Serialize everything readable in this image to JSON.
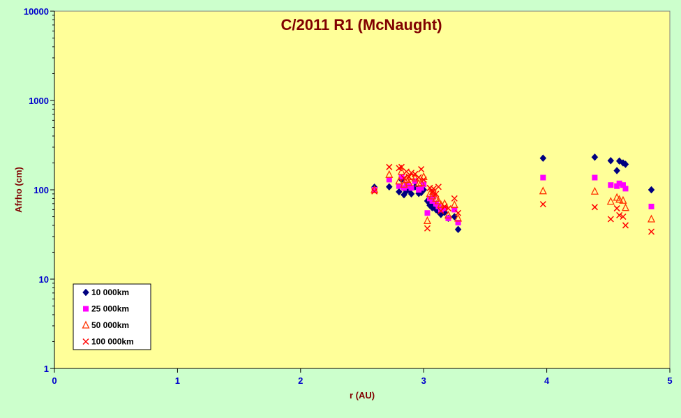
{
  "chart_data": {
    "type": "scatter",
    "title": "C/2011 R1 (McNaught)",
    "xlabel": "r (AU)",
    "ylabel": "Afrho (cm)",
    "xlim": [
      0,
      5
    ],
    "ylim": [
      1,
      10000
    ],
    "yscale": "log",
    "x_ticks": [
      0,
      1,
      2,
      3,
      4,
      5
    ],
    "y_ticks": [
      1,
      10,
      100,
      1000,
      10000
    ],
    "grid": false,
    "legend_position": "bottom-left",
    "colors": {
      "background": "#ccffcc",
      "plot_area": "#ffff99",
      "axis": "#000000",
      "tick_label": "#0000cc",
      "title": "#800000"
    },
    "series": [
      {
        "name": "10 000km",
        "marker": "diamond",
        "color": "#000080",
        "points": [
          [
            2.6,
            107
          ],
          [
            2.72,
            108
          ],
          [
            2.8,
            95
          ],
          [
            2.82,
            130
          ],
          [
            2.84,
            88
          ],
          [
            2.86,
            97
          ],
          [
            2.88,
            100
          ],
          [
            2.9,
            90
          ],
          [
            2.93,
            108
          ],
          [
            2.96,
            91
          ],
          [
            2.98,
            93
          ],
          [
            3.0,
            100
          ],
          [
            3.03,
            75
          ],
          [
            3.05,
            67
          ],
          [
            3.07,
            63
          ],
          [
            3.08,
            70
          ],
          [
            3.1,
            60
          ],
          [
            3.12,
            57
          ],
          [
            3.14,
            53
          ],
          [
            3.17,
            56
          ],
          [
            3.2,
            48
          ],
          [
            3.25,
            50
          ],
          [
            3.28,
            36
          ],
          [
            3.97,
            226
          ],
          [
            4.39,
            232
          ],
          [
            4.52,
            212
          ],
          [
            4.57,
            164
          ],
          [
            4.59,
            210
          ],
          [
            4.62,
            200
          ],
          [
            4.64,
            193
          ],
          [
            4.85,
            100
          ]
        ]
      },
      {
        "name": "25 000km",
        "marker": "square",
        "color": "#ff00ff",
        "points": [
          [
            2.6,
            100
          ],
          [
            2.72,
            130
          ],
          [
            2.8,
            110
          ],
          [
            2.82,
            140
          ],
          [
            2.84,
            105
          ],
          [
            2.86,
            115
          ],
          [
            2.88,
            110
          ],
          [
            2.9,
            105
          ],
          [
            2.93,
            125
          ],
          [
            2.96,
            100
          ],
          [
            2.98,
            105
          ],
          [
            3.0,
            115
          ],
          [
            3.03,
            55
          ],
          [
            3.05,
            80
          ],
          [
            3.07,
            75
          ],
          [
            3.08,
            85
          ],
          [
            3.1,
            70
          ],
          [
            3.12,
            65
          ],
          [
            3.14,
            60
          ],
          [
            3.17,
            62
          ],
          [
            3.2,
            48
          ],
          [
            3.25,
            60
          ],
          [
            3.28,
            43
          ],
          [
            3.97,
            137
          ],
          [
            4.39,
            137
          ],
          [
            4.52,
            113
          ],
          [
            4.57,
            110
          ],
          [
            4.59,
            118
          ],
          [
            4.62,
            113
          ],
          [
            4.64,
            103
          ],
          [
            4.85,
            65
          ]
        ]
      },
      {
        "name": "50 000km",
        "marker": "triangle",
        "color": "#ff3300",
        "points": [
          [
            2.6,
            100
          ],
          [
            2.72,
            148
          ],
          [
            2.8,
            125
          ],
          [
            2.82,
            160
          ],
          [
            2.84,
            115
          ],
          [
            2.86,
            130
          ],
          [
            2.88,
            120
          ],
          [
            2.9,
            140
          ],
          [
            2.93,
            135
          ],
          [
            2.96,
            118
          ],
          [
            2.98,
            120
          ],
          [
            3.0,
            140
          ],
          [
            3.03,
            45
          ],
          [
            3.05,
            90
          ],
          [
            3.07,
            85
          ],
          [
            3.08,
            95
          ],
          [
            3.1,
            80
          ],
          [
            3.12,
            75
          ],
          [
            3.14,
            68
          ],
          [
            3.17,
            70
          ],
          [
            3.2,
            52
          ],
          [
            3.25,
            68
          ],
          [
            3.28,
            48
          ],
          [
            3.97,
            97
          ],
          [
            4.39,
            96
          ],
          [
            4.52,
            74
          ],
          [
            4.57,
            82
          ],
          [
            4.59,
            78
          ],
          [
            4.62,
            76
          ],
          [
            4.64,
            63
          ],
          [
            4.85,
            47
          ]
        ]
      },
      {
        "name": "100 000km",
        "marker": "x",
        "color": "#ff0000",
        "points": [
          [
            2.6,
            96
          ],
          [
            2.72,
            180
          ],
          [
            2.8,
            175
          ],
          [
            2.82,
            180
          ],
          [
            2.84,
            135
          ],
          [
            2.86,
            160
          ],
          [
            2.88,
            140
          ],
          [
            2.9,
            155
          ],
          [
            2.93,
            150
          ],
          [
            2.96,
            138
          ],
          [
            2.98,
            170
          ],
          [
            3.0,
            130
          ],
          [
            3.03,
            37
          ],
          [
            3.05,
            105
          ],
          [
            3.07,
            95
          ],
          [
            3.08,
            103
          ],
          [
            3.1,
            90
          ],
          [
            3.12,
            108
          ],
          [
            3.14,
            58
          ],
          [
            3.17,
            65
          ],
          [
            3.2,
            62
          ],
          [
            3.25,
            80
          ],
          [
            3.28,
            55
          ],
          [
            3.97,
            69
          ],
          [
            4.39,
            64
          ],
          [
            4.52,
            47
          ],
          [
            4.57,
            62
          ],
          [
            4.59,
            52
          ],
          [
            4.62,
            50
          ],
          [
            4.64,
            40
          ],
          [
            4.85,
            34
          ]
        ]
      }
    ]
  }
}
